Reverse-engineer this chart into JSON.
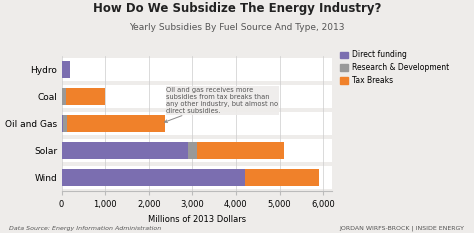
{
  "categories": [
    "Hydro",
    "Coal",
    "Oil and Gas",
    "Solar",
    "Wind"
  ],
  "direct_funding": [
    200,
    0,
    30,
    2900,
    4200
  ],
  "rd": [
    0,
    100,
    100,
    200,
    0
  ],
  "tax_breaks": [
    0,
    900,
    2250,
    2000,
    1700
  ],
  "colors": {
    "direct": "#7b6eb0",
    "rd": "#999999",
    "tax": "#f0812a"
  },
  "title": "How Do We Subsidize The Energy Industry?",
  "subtitle": "Yearly Subsidies By Fuel Source And Type, 2013",
  "xlabel": "Millions of 2013 Dollars",
  "xlim": [
    0,
    6200
  ],
  "xticks": [
    0,
    1000,
    2000,
    3000,
    4000,
    5000,
    6000
  ],
  "xtick_labels": [
    "0",
    "1,000",
    "2,000",
    "3,000",
    "4,000",
    "5,000",
    "6,000"
  ],
  "annotation_text": "Oil and gas receives more\nsubsidies from tax breaks than\nany other industry, but almost no\ndirect subsidies.",
  "data_source": "Data Source: Energy Information Administration",
  "credit": "JORDAN WIRFS-BROCK | INSIDE ENERGY",
  "bg_color": "#eeecea",
  "bar_bg_color": "#ffffff"
}
